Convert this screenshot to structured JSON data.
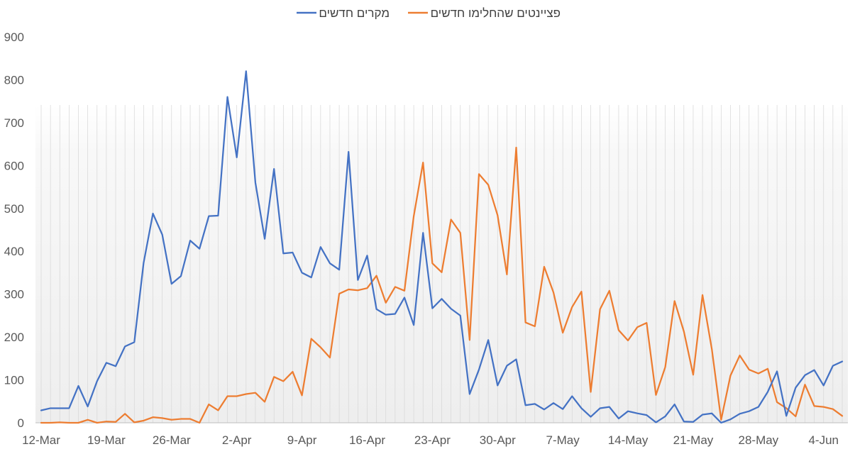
{
  "chart_data": {
    "type": "line",
    "title": "",
    "xlabel": "",
    "ylabel": "",
    "ylim": [
      0,
      900
    ],
    "yticks": [
      0,
      100,
      200,
      300,
      400,
      500,
      600,
      700,
      800,
      900
    ],
    "grid": "vertical-lines-per-day",
    "legend": "top-center",
    "x_tick_labels": [
      "12-Mar",
      "19-Mar",
      "26-Mar",
      "2-Apr",
      "9-Apr",
      "16-Apr",
      "23-Apr",
      "30-Apr",
      "7-May",
      "14-May",
      "21-May",
      "28-May",
      "4-Jun"
    ],
    "x": [
      "12-Mar",
      "13-Mar",
      "14-Mar",
      "15-Mar",
      "16-Mar",
      "17-Mar",
      "18-Mar",
      "19-Mar",
      "20-Mar",
      "21-Mar",
      "22-Mar",
      "23-Mar",
      "24-Mar",
      "25-Mar",
      "26-Mar",
      "27-Mar",
      "28-Mar",
      "29-Mar",
      "30-Mar",
      "31-Mar",
      "1-Apr",
      "2-Apr",
      "3-Apr",
      "4-Apr",
      "5-Apr",
      "6-Apr",
      "7-Apr",
      "8-Apr",
      "9-Apr",
      "10-Apr",
      "11-Apr",
      "12-Apr",
      "13-Apr",
      "14-Apr",
      "15-Apr",
      "16-Apr",
      "17-Apr",
      "18-Apr",
      "19-Apr",
      "20-Apr",
      "21-Apr",
      "22-Apr",
      "23-Apr",
      "24-Apr",
      "25-Apr",
      "26-Apr",
      "27-Apr",
      "28-Apr",
      "29-Apr",
      "30-Apr",
      "1-May",
      "2-May",
      "3-May",
      "4-May",
      "5-May",
      "6-May",
      "7-May",
      "8-May",
      "9-May",
      "10-May",
      "11-May",
      "12-May",
      "13-May",
      "14-May",
      "15-May",
      "16-May",
      "17-May",
      "18-May",
      "19-May",
      "20-May",
      "21-May",
      "22-May",
      "23-May",
      "24-May",
      "25-May",
      "26-May",
      "27-May",
      "28-May",
      "29-May",
      "30-May",
      "31-May",
      "1-Jun",
      "2-Jun",
      "3-Jun",
      "4-Jun",
      "5-Jun",
      "6-Jun"
    ],
    "series": [
      {
        "name": "מקרים חדשים",
        "color": "#4472C4",
        "values": [
          29,
          34,
          34,
          34,
          86,
          38,
          97,
          140,
          132,
          178,
          188,
          373,
          488,
          439,
          324,
          342,
          425,
          406,
          482,
          483,
          760,
          619,
          820,
          560,
          429,
          592,
          395,
          397,
          350,
          339,
          410,
          372,
          357,
          632,
          333,
          390,
          265,
          252,
          254,
          292,
          228,
          443,
          267,
          289,
          266,
          250,
          67,
          124,
          193,
          87,
          133,
          148,
          41,
          44,
          31,
          46,
          32,
          62,
          34,
          14,
          34,
          37,
          10,
          27,
          22,
          18,
          1,
          15,
          43,
          3,
          2,
          19,
          22,
          0,
          8,
          21,
          27,
          37,
          72,
          120,
          16,
          82,
          111,
          123,
          87,
          133,
          143
        ]
      },
      {
        "name": "פציינטים שהחלימו חדשים",
        "color": "#ED7D31",
        "values": [
          0,
          0,
          1,
          0,
          0,
          7,
          0,
          3,
          2,
          21,
          1,
          5,
          13,
          11,
          7,
          9,
          9,
          0,
          43,
          29,
          62,
          62,
          67,
          70,
          49,
          107,
          97,
          119,
          64,
          196,
          176,
          152,
          301,
          311,
          309,
          314,
          343,
          280,
          317,
          308,
          482,
          607,
          372,
          351,
          474,
          443,
          193,
          580,
          555,
          484,
          346,
          642,
          234,
          225,
          364,
          304,
          210,
          270,
          306,
          72,
          265,
          308,
          216,
          192,
          223,
          233,
          65,
          130,
          284,
          213,
          112,
          298,
          172,
          7,
          110,
          157,
          124,
          115,
          126,
          48,
          34,
          15,
          89,
          39,
          37,
          32,
          16
        ]
      }
    ]
  }
}
